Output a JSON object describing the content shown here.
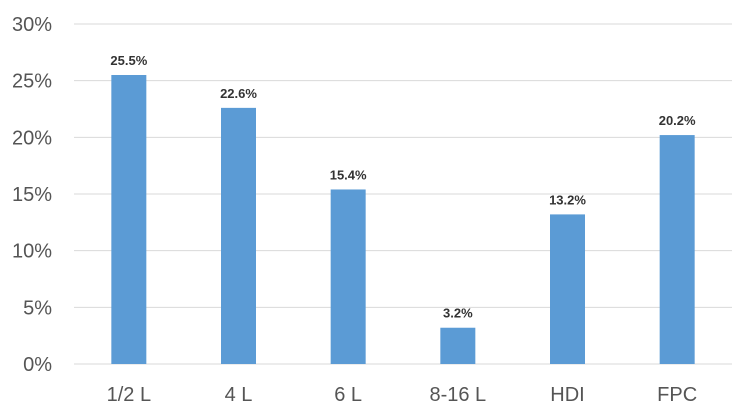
{
  "chart_data": {
    "type": "bar",
    "title": "",
    "xlabel": "",
    "ylabel": "",
    "categories": [
      "1/2 L",
      "4 L",
      "6 L",
      "8-16 L",
      "HDI",
      "FPC"
    ],
    "values": [
      25.5,
      22.6,
      15.4,
      3.2,
      13.2,
      20.2
    ],
    "data_labels": [
      "25.5%",
      "22.6%",
      "15.4%",
      "3.2%",
      "13.2%",
      "20.2%"
    ],
    "ylim": [
      0,
      30
    ],
    "yticks": [
      0,
      5,
      10,
      15,
      20,
      25,
      30
    ],
    "ytick_labels": [
      "0%",
      "5%",
      "10%",
      "15%",
      "20%",
      "25%",
      "30%"
    ],
    "grid": true,
    "legend": "none",
    "bar_color": "#5B9BD5",
    "grid_color": "#d9d9d9"
  }
}
